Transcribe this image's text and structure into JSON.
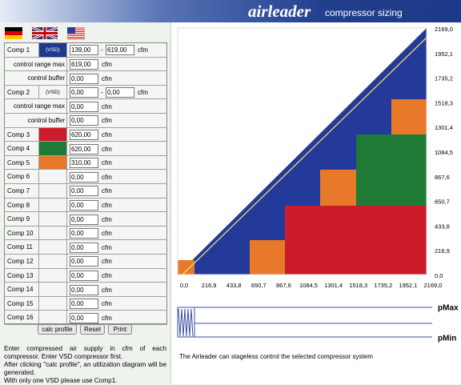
{
  "header": {
    "brand": "airleader",
    "title": "compressor sizing"
  },
  "rows": [
    {
      "label": "Comp 1",
      "tag": "(VSD)",
      "color": "#1f3a8c",
      "values": [
        "139,00",
        "619,00"
      ],
      "separator": "-",
      "unit": "cfm",
      "settings": [
        {
          "label": "control range max",
          "value": "619,00",
          "unit": "cfm"
        },
        {
          "label": "control buffer",
          "value": "0,00",
          "unit": "cfm"
        }
      ]
    },
    {
      "label": "Comp 2",
      "tag": "(VSD)",
      "values": [
        "0,00",
        "0,00"
      ],
      "separator": "-",
      "unit": "cfm",
      "settings": [
        {
          "label": "control range max",
          "value": "0,00",
          "unit": "cfm"
        },
        {
          "label": "control buffer",
          "value": "0,00",
          "unit": "cfm"
        }
      ]
    },
    {
      "label": "Comp 3",
      "color": "#cc1b2a",
      "values": [
        "620,00"
      ],
      "unit": "cfm"
    },
    {
      "label": "Comp 4",
      "color": "#1f7a35",
      "values": [
        "620,00"
      ],
      "unit": "cfm"
    },
    {
      "label": "Comp 5",
      "color": "#e8792a",
      "values": [
        "310,00"
      ],
      "unit": "cfm"
    },
    {
      "label": "Comp 6",
      "values": [
        "0,00"
      ],
      "unit": "cfm"
    },
    {
      "label": "Comp 7",
      "values": [
        "0,00"
      ],
      "unit": "cfm"
    },
    {
      "label": "Comp 8",
      "values": [
        "0,00"
      ],
      "unit": "cfm"
    },
    {
      "label": "Comp 9",
      "values": [
        "0,00"
      ],
      "unit": "cfm"
    },
    {
      "label": "Comp 10",
      "values": [
        "0,00"
      ],
      "unit": "cfm"
    },
    {
      "label": "Comp 11",
      "values": [
        "0,00"
      ],
      "unit": "cfm"
    },
    {
      "label": "Comp 12",
      "values": [
        "0,00"
      ],
      "unit": "cfm"
    },
    {
      "label": "Comp 13",
      "values": [
        "0,00"
      ],
      "unit": "cfm"
    },
    {
      "label": "Comp 14",
      "values": [
        "0,00"
      ],
      "unit": "cfm"
    },
    {
      "label": "Comp 15",
      "values": [
        "0,00"
      ],
      "unit": "cfm"
    },
    {
      "label": "Comp 16",
      "values": [
        "0,00"
      ],
      "unit": "cfm"
    }
  ],
  "buttons": [
    "calc profile",
    "Reset",
    "Print"
  ],
  "instructions": [
    "Enter compressed air supply in cfm of each compressor. Enter VSD compressor first.",
    "After clicking \"calc profile\", an utilization diagram will be generated.",
    "With only one VSD please use Comp1."
  ],
  "chart": {
    "xlim": [
      0,
      2169
    ],
    "ylim": [
      0,
      2169
    ],
    "xticks": [
      {
        "value": 0,
        "label": "0,0"
      },
      {
        "value": 216.9,
        "label": "216,9"
      },
      {
        "value": 433.8,
        "label": "433,8"
      },
      {
        "value": 650.7,
        "label": "650,7"
      },
      {
        "value": 867.6,
        "label": "867,6"
      },
      {
        "value": 1084.5,
        "label": "1084,5"
      },
      {
        "value": 1301.4,
        "label": "1301,4"
      },
      {
        "value": 1518.3,
        "label": "1518,3"
      },
      {
        "value": 1735.2,
        "label": "1735,2"
      },
      {
        "value": 1952.1,
        "label": "1952,1"
      },
      {
        "value": 2169,
        "label": "2169,0"
      }
    ],
    "yticks": [
      {
        "value": 0,
        "label": "0,0"
      },
      {
        "value": 216.9,
        "label": "216,9"
      },
      {
        "value": 433.8,
        "label": "433,8"
      },
      {
        "value": 650.7,
        "label": "650,7"
      },
      {
        "value": 867.6,
        "label": "867,6"
      },
      {
        "value": 1084.5,
        "label": "1084,5"
      },
      {
        "value": 1301.4,
        "label": "1301,4"
      },
      {
        "value": 1518.3,
        "label": "1518,3"
      },
      {
        "value": 1735.2,
        "label": "1735,2"
      },
      {
        "value": 1952.1,
        "label": "1952,1"
      },
      {
        "value": 2169,
        "label": "2169,0"
      }
    ]
  },
  "pressure": {
    "max": "pMax",
    "min": "pMin"
  },
  "note": "The Airleader can stageless control the selected compressor system"
}
